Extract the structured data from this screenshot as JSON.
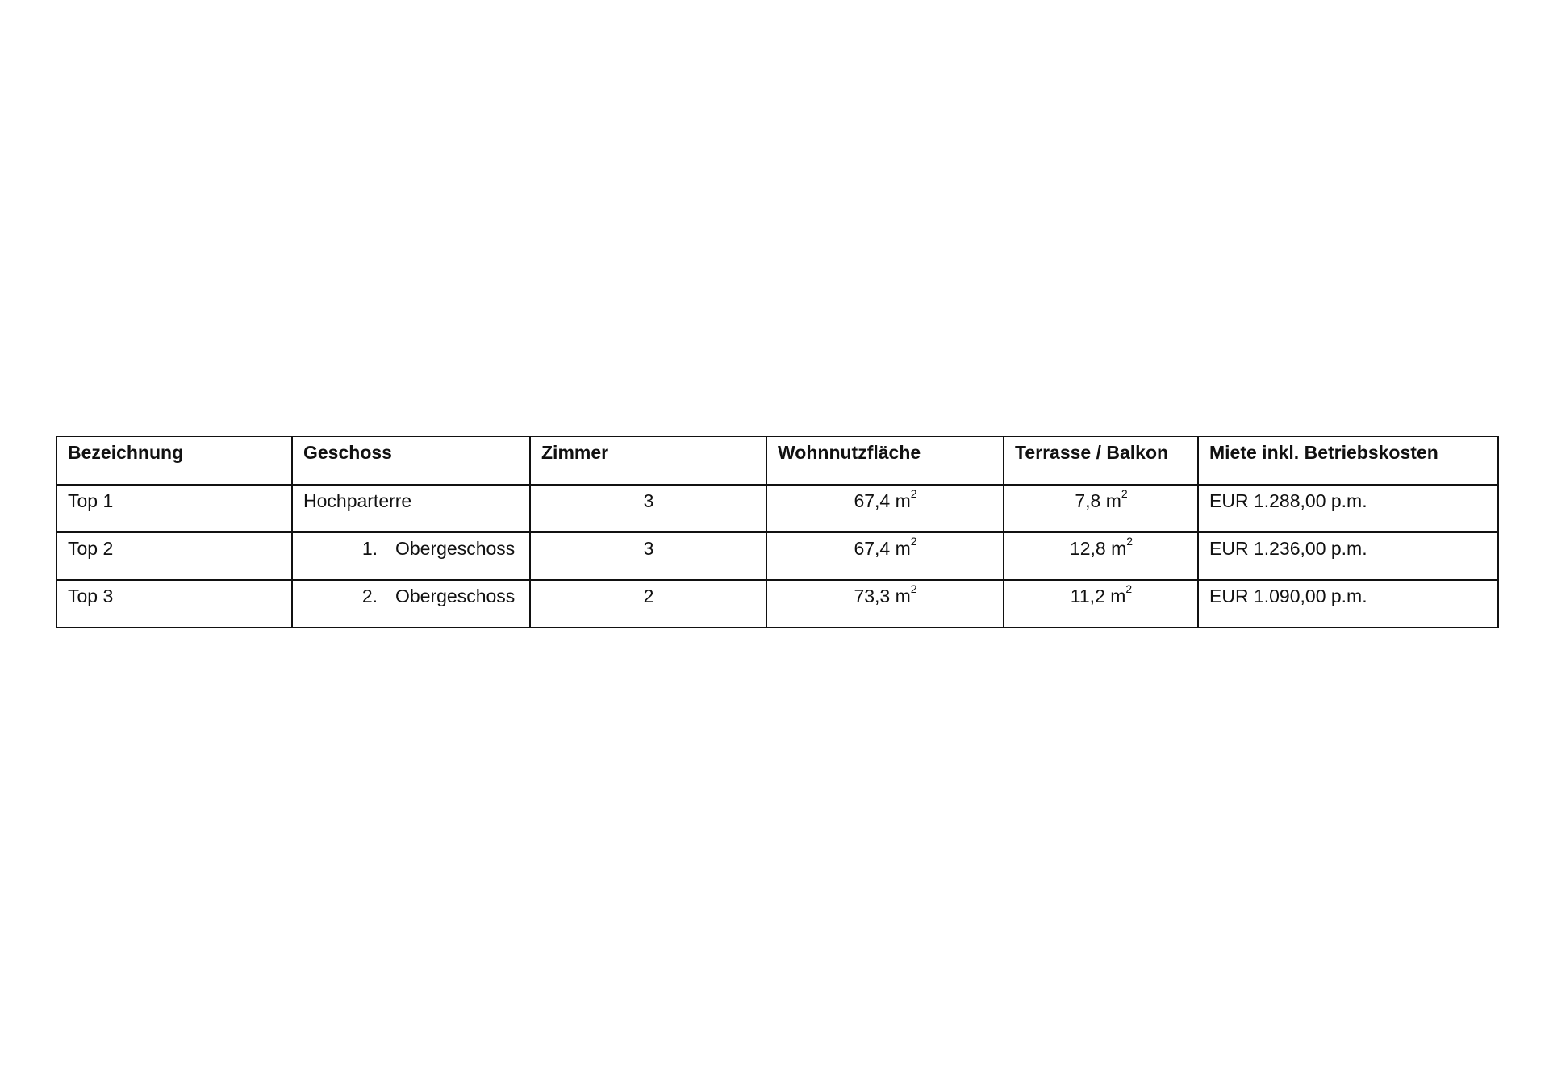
{
  "table": {
    "headers": [
      "Bezeichnung",
      "Geschoss",
      "Zimmer",
      "Wohnnutzfläche",
      "Terrasse / Balkon",
      "Miete inkl. Betriebskosten"
    ],
    "rows": [
      {
        "bezeichnung": "Top 1",
        "geschoss_num": "",
        "geschoss": "Hochparterre",
        "zimmer": "3",
        "wohnflaeche": "67,4 m",
        "terrasse": "7,8 m",
        "unit_exp": "2",
        "miete": "EUR 1.288,00 p.m."
      },
      {
        "bezeichnung": "Top 2",
        "geschoss_num": "1.",
        "geschoss": "Obergeschoss",
        "zimmer": "3",
        "wohnflaeche": "67,4 m",
        "terrasse": "12,8 m",
        "unit_exp": "2",
        "miete": "EUR 1.236,00 p.m."
      },
      {
        "bezeichnung": "Top 3",
        "geschoss_num": "2.",
        "geschoss": "Obergeschoss",
        "zimmer": "2",
        "wohnflaeche": "73,3 m",
        "terrasse": "11,2 m",
        "unit_exp": "2",
        "miete": "EUR 1.090,00 p.m."
      }
    ]
  }
}
